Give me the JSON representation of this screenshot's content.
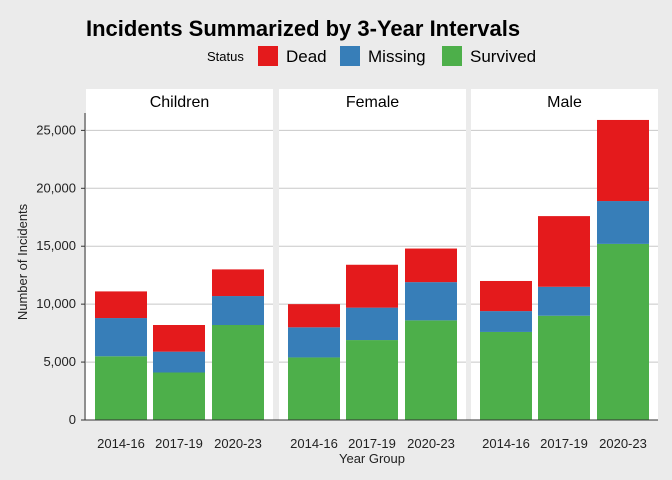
{
  "chart_data": {
    "type": "bar",
    "stacked": true,
    "title": "Incidents Summarized by 3-Year Intervals",
    "xlabel": "Year Group",
    "ylabel": "Number of Incidents",
    "ylim": [
      0,
      26500
    ],
    "yticks": [
      0,
      5000,
      10000,
      15000,
      20000,
      25000
    ],
    "ytick_labels": [
      "0",
      "5,000",
      "10,000",
      "15,000",
      "20,000",
      "25,000"
    ],
    "categories": [
      "2014-16",
      "2017-19",
      "2020-23"
    ],
    "legend": {
      "title": "Status",
      "placement": "top",
      "entries": [
        {
          "name": "Dead",
          "color": "#e41a1c"
        },
        {
          "name": "Missing",
          "color": "#377eb8"
        },
        {
          "name": "Survived",
          "color": "#4daf4a"
        }
      ]
    },
    "facets": [
      {
        "name": "Children",
        "series": [
          {
            "name": "Survived",
            "values": [
              5500,
              4100,
              8200
            ]
          },
          {
            "name": "Missing",
            "values": [
              3300,
              1800,
              2500
            ]
          },
          {
            "name": "Dead",
            "values": [
              2300,
              2300,
              2300
            ]
          }
        ]
      },
      {
        "name": "Female",
        "series": [
          {
            "name": "Survived",
            "values": [
              5400,
              6900,
              8600
            ]
          },
          {
            "name": "Missing",
            "values": [
              2600,
              2800,
              3300
            ]
          },
          {
            "name": "Dead",
            "values": [
              2000,
              3700,
              2900
            ]
          }
        ]
      },
      {
        "name": "Male",
        "series": [
          {
            "name": "Survived",
            "values": [
              7600,
              9000,
              15200
            ]
          },
          {
            "name": "Missing",
            "values": [
              1800,
              2500,
              3700
            ]
          },
          {
            "name": "Dead",
            "values": [
              2600,
              6100,
              7000
            ]
          }
        ]
      }
    ],
    "grid": true
  }
}
